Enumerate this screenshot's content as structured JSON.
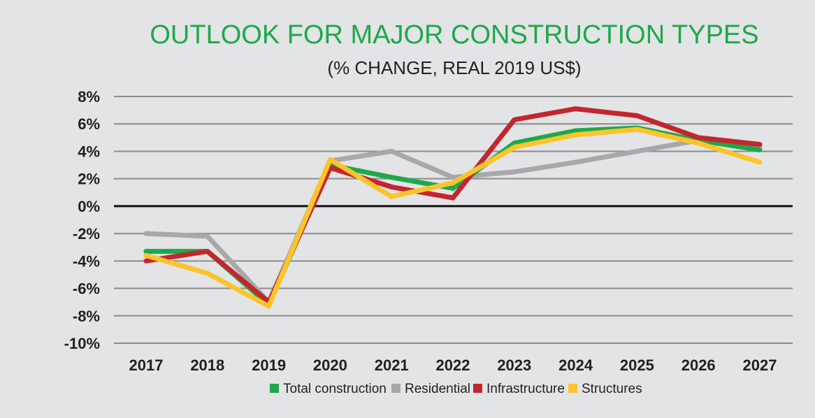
{
  "colors": {
    "background": "#e3e4e6",
    "title": "#1ea84a",
    "text": "#231f20",
    "grid": "#8a8c8e",
    "zero_line": "#111111"
  },
  "chart_data": {
    "type": "line",
    "title": "OUTLOOK FOR MAJOR CONSTRUCTION TYPES",
    "subtitle": "(% CHANGE, REAL 2019 US$)",
    "xlabel": "",
    "ylabel": "",
    "x": [
      "2017",
      "2018",
      "2019",
      "2020",
      "2021",
      "2022",
      "2023",
      "2024",
      "2025",
      "2026",
      "2027"
    ],
    "ylim": [
      -10,
      8
    ],
    "yticks": [
      8,
      6,
      4,
      2,
      0,
      -2,
      -4,
      -6,
      -8,
      -10
    ],
    "ytick_labels": [
      "8%",
      "6%",
      "4%",
      "2%",
      "0%",
      "-2%",
      "-4%",
      "-6%",
      "-8%",
      "-10%"
    ],
    "grid": true,
    "legend_position": "bottom",
    "series": [
      {
        "name": "Residential",
        "color": "#a7a8aa",
        "values": [
          -2.0,
          -2.2,
          -7.0,
          3.3,
          4.0,
          2.1,
          2.5,
          3.2,
          4.0,
          4.8,
          4.3
        ]
      },
      {
        "name": "Total construction",
        "color": "#1ea84a",
        "values": [
          -3.3,
          -3.3,
          -7.2,
          3.0,
          2.1,
          1.3,
          4.6,
          5.5,
          5.7,
          4.8,
          4.1
        ]
      },
      {
        "name": "Infrastructure",
        "color": "#c4262e",
        "values": [
          -4.0,
          -3.3,
          -7.0,
          2.8,
          1.4,
          0.6,
          6.3,
          7.1,
          6.6,
          5.0,
          4.5
        ]
      },
      {
        "name": "Structures",
        "color": "#fcc42b",
        "values": [
          -3.6,
          -4.9,
          -7.3,
          3.4,
          0.7,
          1.7,
          4.3,
          5.2,
          5.6,
          4.6,
          3.2
        ]
      }
    ],
    "legend_order": [
      "Total construction",
      "Residential",
      "Infrastructure",
      "Structures"
    ]
  }
}
